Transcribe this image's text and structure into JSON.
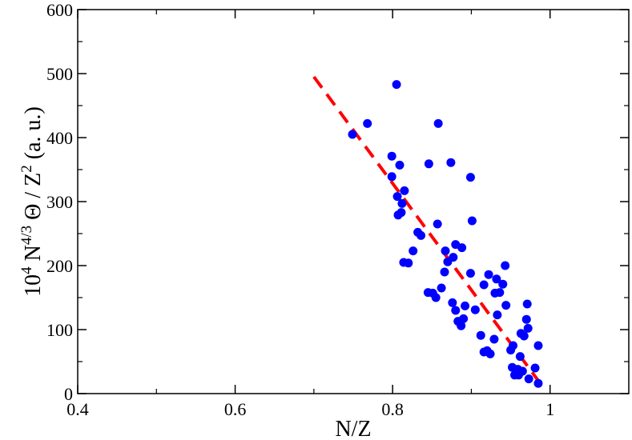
{
  "chart_data": {
    "type": "scatter",
    "xlabel": "N/Z",
    "ylabel_parts": [
      "10",
      "4",
      " N",
      "4/3",
      " Θ / Z",
      "2",
      " (a. u.)"
    ],
    "xlim": [
      0.4,
      1.1
    ],
    "ylim": [
      0,
      600
    ],
    "xticks": [
      "0.4",
      "0.6",
      "0.8",
      "1"
    ],
    "yticks": [
      "0",
      "100",
      "200",
      "300",
      "400",
      "500",
      "600"
    ],
    "grid": false,
    "colors": {
      "points": "#0000ff",
      "fit": "#ff0000"
    },
    "fit_line": {
      "style": "dashed",
      "x": [
        0.7,
        0.99
      ],
      "y": [
        495,
        12
      ]
    },
    "points": [
      [
        0.805,
        483
      ],
      [
        0.749,
        405
      ],
      [
        0.768,
        422
      ],
      [
        0.858,
        422
      ],
      [
        0.799,
        371
      ],
      [
        0.809,
        357
      ],
      [
        0.846,
        359
      ],
      [
        0.874,
        361
      ],
      [
        0.899,
        338
      ],
      [
        0.799,
        339
      ],
      [
        0.815,
        317
      ],
      [
        0.806,
        308
      ],
      [
        0.812,
        297
      ],
      [
        0.807,
        279
      ],
      [
        0.811,
        283
      ],
      [
        0.857,
        265
      ],
      [
        0.901,
        270
      ],
      [
        0.832,
        252
      ],
      [
        0.836,
        247
      ],
      [
        0.88,
        233
      ],
      [
        0.888,
        228
      ],
      [
        0.826,
        223
      ],
      [
        0.867,
        223
      ],
      [
        0.877,
        213
      ],
      [
        0.87,
        206
      ],
      [
        0.814,
        205
      ],
      [
        0.82,
        204
      ],
      [
        0.866,
        190
      ],
      [
        0.899,
        188
      ],
      [
        0.922,
        186
      ],
      [
        0.932,
        179
      ],
      [
        0.943,
        200
      ],
      [
        0.94,
        171
      ],
      [
        0.916,
        170
      ],
      [
        0.862,
        165
      ],
      [
        0.845,
        158
      ],
      [
        0.851,
        157
      ],
      [
        0.855,
        150
      ],
      [
        0.93,
        157
      ],
      [
        0.936,
        158
      ],
      [
        0.876,
        142
      ],
      [
        0.892,
        137
      ],
      [
        0.905,
        131
      ],
      [
        0.88,
        130
      ],
      [
        0.944,
        138
      ],
      [
        0.933,
        123
      ],
      [
        0.971,
        140
      ],
      [
        0.89,
        117
      ],
      [
        0.883,
        113
      ],
      [
        0.887,
        106
      ],
      [
        0.97,
        116
      ],
      [
        0.972,
        102
      ],
      [
        0.963,
        94
      ],
      [
        0.967,
        90
      ],
      [
        0.912,
        91
      ],
      [
        0.929,
        85
      ],
      [
        0.953,
        75
      ],
      [
        0.95,
        68
      ],
      [
        0.92,
        67
      ],
      [
        0.916,
        65
      ],
      [
        0.924,
        62
      ],
      [
        0.985,
        75
      ],
      [
        0.962,
        58
      ],
      [
        0.952,
        41
      ],
      [
        0.959,
        38
      ],
      [
        0.965,
        35
      ],
      [
        0.955,
        29
      ],
      [
        0.96,
        29
      ],
      [
        0.981,
        40
      ],
      [
        0.973,
        23
      ],
      [
        0.985,
        16
      ]
    ]
  }
}
